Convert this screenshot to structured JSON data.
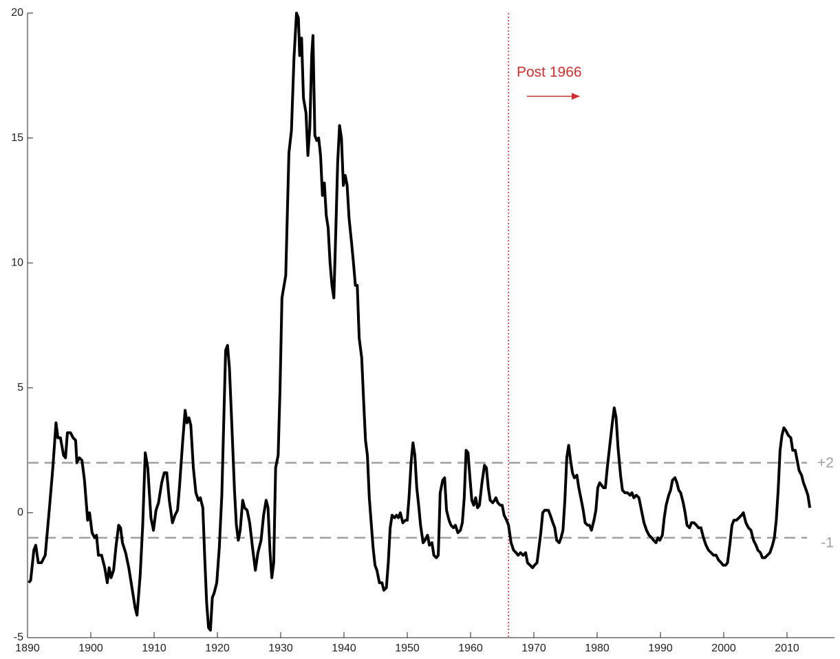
{
  "chart_data": {
    "type": "line",
    "x": [
      1890.2,
      1890.5,
      1891,
      1891.3,
      1891.7,
      1892.2,
      1892.8,
      1893.5,
      1894,
      1894.5,
      1894.8,
      1895.2,
      1895.7,
      1896,
      1896.3,
      1896.8,
      1897.2,
      1897.6,
      1897.8,
      1898.2,
      1898.6,
      1899,
      1899.5,
      1899.8,
      1900.2,
      1900.6,
      1900.9,
      1901.2,
      1901.7,
      1902.2,
      1902.6,
      1902.9,
      1903.2,
      1903.6,
      1904,
      1904.4,
      1904.7,
      1905,
      1905.5,
      1906,
      1906.5,
      1907,
      1907.3,
      1907.8,
      1908.2,
      1908.6,
      1909,
      1909.5,
      1909.9,
      1910.3,
      1910.7,
      1911.2,
      1911.6,
      1912,
      1912.4,
      1912.9,
      1913.3,
      1913.7,
      1914,
      1914.5,
      1914.9,
      1915.2,
      1915.5,
      1915.8,
      1916.2,
      1916.6,
      1917,
      1917.3,
      1917.7,
      1918,
      1918.3,
      1918.6,
      1918.9,
      1919.2,
      1919.5,
      1919.9,
      1920.3,
      1920.7,
      1921,
      1921.3,
      1921.6,
      1921.9,
      1922.3,
      1922.7,
      1923,
      1923.3,
      1923.6,
      1924,
      1924.3,
      1924.7,
      1925.1,
      1925.6,
      1926,
      1926.4,
      1926.9,
      1927.3,
      1927.7,
      1928,
      1928.3,
      1928.6,
      1928.9,
      1929.2,
      1929.6,
      1929.9,
      1930.2,
      1930.8,
      1931.3,
      1931.7,
      1932.1,
      1932.5,
      1932.8,
      1933,
      1933.3,
      1933.6,
      1934,
      1934.3,
      1934.6,
      1934.9,
      1935.1,
      1935.4,
      1935.7,
      1936,
      1936.3,
      1936.6,
      1936.9,
      1937.2,
      1937.5,
      1937.8,
      1938.1,
      1938.4,
      1938.7,
      1939,
      1939.3,
      1939.6,
      1939.9,
      1940.2,
      1940.5,
      1940.8,
      1941.2,
      1941.5,
      1941.8,
      1942.1,
      1942.4,
      1942.8,
      1943.1,
      1943.4,
      1943.7,
      1944,
      1944.3,
      1944.6,
      1944.9,
      1945.2,
      1945.6,
      1946,
      1946.3,
      1946.7,
      1947,
      1947.3,
      1947.6,
      1948,
      1948.3,
      1948.6,
      1948.9,
      1949.3,
      1949.7,
      1950,
      1950.3,
      1950.6,
      1950.9,
      1951.2,
      1951.5,
      1951.8,
      1952.1,
      1952.5,
      1952.8,
      1953.2,
      1953.5,
      1953.9,
      1954.2,
      1954.6,
      1954.9,
      1955.2,
      1955.6,
      1955.9,
      1956.2,
      1956.6,
      1956.9,
      1957.3,
      1957.6,
      1958,
      1958.4,
      1958.7,
      1959,
      1959.3,
      1959.6,
      1959.9,
      1960.2,
      1960.5,
      1960.8,
      1961.1,
      1961.4,
      1961.8,
      1962.2,
      1962.5,
      1962.8,
      1963.1,
      1963.5,
      1963.8,
      1964,
      1964.3,
      1964.7,
      1965,
      1965.3,
      1965.7,
      1966,
      1966.4,
      1966.8,
      1967.2,
      1967.5,
      1967.9,
      1968.3,
      1968.7,
      1969,
      1969.4,
      1969.8,
      1970.1,
      1970.5,
      1970.8,
      1971.1,
      1971.4,
      1971.7,
      1972,
      1972.3,
      1972.6,
      1973,
      1973.3,
      1973.6,
      1974,
      1974.3,
      1974.6,
      1974.9,
      1975.2,
      1975.5,
      1975.8,
      1976.1,
      1976.4,
      1976.8,
      1977.1,
      1977.5,
      1977.8,
      1978.1,
      1978.5,
      1978.8,
      1979.1,
      1979.5,
      1979.8,
      1980.1,
      1980.4,
      1980.7,
      1981,
      1981.3,
      1981.6,
      1982,
      1982.4,
      1982.7,
      1983,
      1983.3,
      1983.7,
      1984,
      1984.4,
      1984.8,
      1985.2,
      1985.5,
      1985.8,
      1986.2,
      1986.6,
      1987,
      1987.4,
      1987.8,
      1988.2,
      1988.6,
      1988.9,
      1989.3,
      1989.6,
      1989.9,
      1990.3,
      1990.6,
      1990.9,
      1991.3,
      1991.6,
      1991.9,
      1992.3,
      1992.6,
      1992.9,
      1993.2,
      1993.6,
      1993.9,
      1994.2,
      1994.6,
      1994.9,
      1995.3,
      1995.7,
      1996,
      1996.4,
      1996.8,
      1997.2,
      1997.6,
      1998,
      1998.4,
      1998.8,
      1999.2,
      1999.6,
      1999.9,
      2000.3,
      2000.6,
      2001,
      2001.3,
      2001.6,
      2002,
      2002.4,
      2002.8,
      2003.1,
      2003.5,
      2003.9,
      2004.3,
      2004.7,
      2005.1,
      2005.4,
      2005.8,
      2006.1,
      2006.5,
      2006.9,
      2007.3,
      2007.7,
      2008,
      2008.3,
      2008.6,
      2008.9,
      2009.2,
      2009.5,
      2009.8,
      2010.2,
      2010.6,
      2010.9,
      2011.3,
      2011.6,
      2011.9,
      2012.3,
      2012.6,
      2012.9,
      2013.3,
      2013.6
    ],
    "values": [
      -2.8,
      -2.7,
      -1.5,
      -1.3,
      -2.0,
      -2.0,
      -1.7,
      0.3,
      1.8,
      3.6,
      3.0,
      3.0,
      2.3,
      2.2,
      3.2,
      3.2,
      3.0,
      2.9,
      2.0,
      2.2,
      2.1,
      1.3,
      -0.3,
      0.0,
      -0.8,
      -1.0,
      -0.9,
      -1.7,
      -1.7,
      -2.2,
      -2.8,
      -2.2,
      -2.6,
      -2.3,
      -1.3,
      -0.5,
      -0.6,
      -1.2,
      -1.6,
      -2.2,
      -3.0,
      -3.8,
      -4.1,
      -2.5,
      -0.5,
      2.4,
      1.8,
      -0.2,
      -0.7,
      0.1,
      0.4,
      1.2,
      1.6,
      1.6,
      0.5,
      -0.4,
      -0.1,
      0.1,
      1.0,
      2.8,
      4.1,
      3.6,
      3.8,
      3.5,
      1.8,
      0.8,
      0.5,
      0.6,
      0.2,
      -1.8,
      -3.6,
      -4.6,
      -4.7,
      -3.4,
      -3.2,
      -2.8,
      -1.4,
      0.7,
      3.6,
      6.5,
      6.7,
      5.8,
      3.4,
      0.9,
      -0.5,
      -1.1,
      -0.7,
      0.5,
      0.2,
      0.1,
      -0.4,
      -1.5,
      -2.3,
      -1.6,
      -1.1,
      -0.1,
      0.5,
      0.2,
      -1.5,
      -2.6,
      -2.0,
      1.8,
      2.3,
      5.0,
      8.6,
      9.5,
      14.4,
      15.3,
      18.2,
      20.0,
      19.8,
      18.3,
      19.0,
      16.6,
      16.0,
      14.3,
      15.4,
      18.3,
      19.1,
      15.1,
      14.9,
      15.0,
      14.3,
      12.7,
      13.2,
      11.9,
      11.4,
      10.0,
      9.1,
      8.6,
      11.2,
      14.0,
      15.5,
      15.0,
      13.1,
      13.5,
      13.1,
      11.8,
      10.8,
      10.0,
      9.1,
      9.1,
      7.0,
      6.2,
      4.5,
      2.9,
      2.3,
      0.6,
      -0.4,
      -1.4,
      -2.1,
      -2.3,
      -2.8,
      -2.8,
      -3.1,
      -3.0,
      -2.0,
      -0.6,
      -0.1,
      -0.2,
      -0.1,
      -0.2,
      0.0,
      -0.4,
      -0.3,
      -0.3,
      0.7,
      2.0,
      2.8,
      2.3,
      1.0,
      0.3,
      -0.5,
      -1.2,
      -1.1,
      -0.9,
      -1.3,
      -1.2,
      -1.7,
      -1.8,
      -1.7,
      0.8,
      1.3,
      1.4,
      0.1,
      -0.3,
      -0.5,
      -0.6,
      -0.5,
      -0.8,
      -0.7,
      -0.4,
      0.6,
      2.5,
      2.4,
      1.4,
      0.5,
      0.3,
      0.6,
      0.2,
      0.3,
      1.2,
      1.9,
      1.8,
      1.0,
      0.5,
      0.4,
      0.5,
      0.6,
      0.4,
      0.3,
      0.3,
      -0.1,
      -0.3,
      -0.5,
      -1.2,
      -1.5,
      -1.6,
      -1.7,
      -1.6,
      -1.7,
      -1.6,
      -2.0,
      -2.1,
      -2.2,
      -2.1,
      -2.0,
      -1.4,
      -0.8,
      0.0,
      0.1,
      0.1,
      0.1,
      -0.1,
      -0.4,
      -0.6,
      -1.1,
      -1.2,
      -1.0,
      -0.7,
      0.5,
      2.2,
      2.7,
      2.1,
      1.6,
      1.4,
      1.5,
      1.0,
      0.5,
      0.1,
      -0.4,
      -0.5,
      -0.5,
      -0.7,
      -0.3,
      0.1,
      1.0,
      1.2,
      1.1,
      1.0,
      1.0,
      1.8,
      2.7,
      3.6,
      4.2,
      3.8,
      2.6,
      1.5,
      0.9,
      0.8,
      0.8,
      0.7,
      0.8,
      0.6,
      0.7,
      0.6,
      0.1,
      -0.4,
      -0.7,
      -0.9,
      -1.0,
      -1.1,
      -1.2,
      -1.0,
      -1.1,
      -0.9,
      -0.2,
      0.3,
      0.7,
      0.9,
      1.3,
      1.4,
      1.2,
      0.9,
      0.8,
      0.4,
      0.0,
      -0.5,
      -0.6,
      -0.4,
      -0.4,
      -0.5,
      -0.6,
      -0.6,
      -1.0,
      -1.3,
      -1.5,
      -1.6,
      -1.7,
      -1.7,
      -1.9,
      -2.0,
      -2.1,
      -2.1,
      -2.0,
      -1.2,
      -0.5,
      -0.3,
      -0.3,
      -0.2,
      -0.1,
      0.0,
      -0.4,
      -0.6,
      -0.7,
      -1.1,
      -1.3,
      -1.5,
      -1.6,
      -1.8,
      -1.8,
      -1.7,
      -1.6,
      -1.3,
      -1.0,
      -0.3,
      0.9,
      2.5,
      3.1,
      3.4,
      3.3,
      3.1,
      3.0,
      2.5,
      2.5,
      2.1,
      1.7,
      1.5,
      1.2,
      1.0,
      0.7,
      0.2
    ],
    "color": "#000000",
    "xlim": [
      1890,
      2017.5
    ],
    "ylim": [
      -5,
      20
    ],
    "xticks": [
      1890,
      1900,
      1910,
      1920,
      1930,
      1940,
      1950,
      1960,
      1970,
      1980,
      1990,
      2000,
      2010
    ],
    "yticks": [
      -5,
      0,
      5,
      10,
      15,
      20
    ],
    "reference_lines": [
      {
        "value": 2,
        "label": "+2"
      },
      {
        "value": -1,
        "label": "-1"
      }
    ],
    "reference_color": "#a0a0a0",
    "vline": 1966,
    "vline_color": "#d03030",
    "annotation": "Post 1966"
  }
}
